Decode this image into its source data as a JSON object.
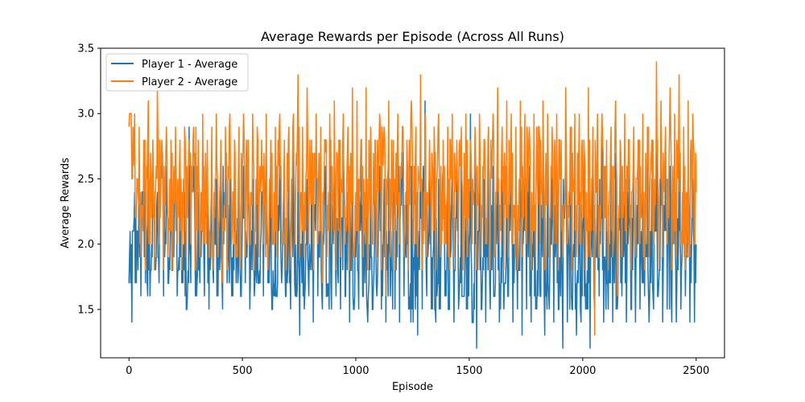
{
  "chart_data": {
    "type": "line",
    "title": "Average Rewards per Episode (Across All Runs)",
    "xlabel": "Episode",
    "ylabel": "Average Rewards",
    "xlim": [
      -125,
      2625
    ],
    "ylim": [
      1.13,
      3.5
    ],
    "xticks": [
      0,
      500,
      1000,
      1500,
      2000,
      2500
    ],
    "yticks": [
      1.5,
      2.0,
      2.5,
      3.0,
      3.5
    ],
    "xtick_labels": [
      "0",
      "500",
      "1000",
      "1500",
      "2000",
      "2500"
    ],
    "ytick_labels": [
      "1.5",
      "2.0",
      "2.5",
      "3.0",
      "3.5"
    ],
    "grid": false,
    "legend_position": "upper-left",
    "series": [
      {
        "name": "Player 1 - Average",
        "color": "#1f77b4",
        "x": [
          0,
          20,
          40,
          60,
          80,
          100,
          120,
          140,
          160,
          180,
          200,
          220,
          240,
          260,
          280,
          300,
          320,
          340,
          360,
          380,
          400,
          420,
          440,
          460,
          480,
          500,
          520,
          540,
          560,
          580,
          600,
          620,
          640,
          660,
          680,
          700,
          720,
          740,
          760,
          780,
          800,
          820,
          840,
          860,
          880,
          900,
          920,
          940,
          960,
          980,
          1000,
          1020,
          1040,
          1060,
          1080,
          1100,
          1120,
          1140,
          1160,
          1180,
          1200,
          1220,
          1240,
          1260,
          1280,
          1300,
          1320,
          1340,
          1360,
          1380,
          1400,
          1420,
          1440,
          1460,
          1480,
          1500,
          1520,
          1540,
          1560,
          1580,
          1600,
          1620,
          1640,
          1660,
          1680,
          1700,
          1720,
          1740,
          1760,
          1780,
          1800,
          1820,
          1840,
          1860,
          1880,
          1900,
          1920,
          1940,
          1960,
          1980,
          2000,
          2020,
          2040,
          2060,
          2080,
          2100,
          2120,
          2140,
          2160,
          2180,
          2200,
          2220,
          2240,
          2260,
          2280,
          2300,
          2320,
          2340,
          2360,
          2380,
          2400,
          2420,
          2440,
          2460,
          2480,
          2500
        ],
        "values": [
          1.7,
          2.1,
          1.8,
          2.4,
          1.7,
          2.0,
          1.9,
          2.6,
          2.1,
          1.8,
          2.3,
          1.9,
          2.0,
          1.8,
          2.5,
          1.7,
          2.1,
          2.2,
          1.9,
          2.0,
          1.8,
          2.4,
          1.9,
          2.0,
          1.7,
          2.2,
          1.9,
          2.1,
          1.8,
          2.0,
          2.3,
          1.9,
          1.7,
          2.1,
          2.0,
          1.8,
          2.2,
          1.6,
          1.9,
          2.0,
          1.8,
          2.3,
          1.9,
          2.1,
          1.7,
          2.0,
          1.8,
          2.2,
          2.0,
          1.8,
          1.9,
          2.1,
          1.7,
          2.0,
          1.8,
          2.2,
          1.9,
          2.0,
          1.8,
          2.1,
          2.3,
          1.9,
          1.7,
          2.0,
          1.8,
          2.2,
          2.0,
          1.9,
          1.7,
          2.1,
          1.8,
          2.0,
          2.2,
          1.9,
          1.8,
          2.0,
          1.7,
          2.1,
          1.9,
          2.3,
          1.8,
          2.0,
          1.9,
          1.7,
          2.1,
          2.0,
          1.8,
          2.2,
          1.9,
          2.0,
          1.8,
          2.1,
          1.7,
          2.0,
          1.9,
          1.8,
          2.2,
          1.9,
          2.0,
          1.7,
          2.1,
          1.8,
          2.0,
          1.9,
          2.2,
          1.8,
          2.0,
          1.7,
          2.1,
          1.9,
          2.0,
          1.8,
          2.3,
          1.9,
          2.0,
          1.7,
          2.1,
          1.8,
          2.2,
          1.9,
          2.0,
          1.8,
          2.1,
          1.9,
          2.0,
          2.0
        ],
        "lows": [
          1.4,
          1.7,
          1.6,
          1.7,
          1.6,
          1.8,
          1.7,
          1.6,
          1.7,
          1.8,
          1.6,
          1.7,
          1.5,
          1.7,
          1.6,
          1.7,
          1.6,
          1.5,
          1.7,
          1.6,
          1.5,
          1.7,
          1.6,
          1.7,
          1.6,
          1.7,
          1.5,
          1.6,
          1.7,
          1.6,
          1.7,
          1.5,
          1.6,
          1.7,
          1.6,
          1.5,
          1.6,
          1.3,
          1.5,
          1.6,
          1.4,
          1.6,
          1.5,
          1.6,
          1.5,
          1.6,
          1.5,
          1.6,
          1.4,
          1.5,
          1.5,
          1.6,
          1.4,
          1.5,
          1.6,
          1.5,
          1.4,
          1.6,
          1.5,
          1.4,
          1.6,
          1.5,
          1.4,
          1.3,
          1.5,
          1.6,
          1.5,
          1.4,
          1.5,
          1.6,
          1.5,
          1.4,
          1.5,
          1.6,
          1.5,
          1.4,
          1.2,
          1.5,
          1.4,
          1.5,
          1.6,
          1.4,
          1.5,
          1.6,
          1.4,
          1.5,
          1.3,
          1.5,
          1.4,
          1.5,
          1.6,
          1.3,
          1.5,
          1.4,
          1.5,
          1.2,
          1.4,
          1.5,
          1.3,
          1.4,
          1.5,
          1.2,
          1.5,
          1.6,
          1.4,
          1.5,
          1.4,
          1.5,
          1.6,
          1.4,
          1.5,
          1.4,
          1.5,
          1.6,
          1.4,
          1.5,
          1.6,
          1.4,
          1.5,
          1.4,
          1.4,
          1.5,
          1.6,
          1.4,
          1.4,
          1.8
        ],
        "highs": [
          2.1,
          2.4,
          2.7,
          2.6,
          2.7,
          2.8,
          2.4,
          2.7,
          2.6,
          2.5,
          2.7,
          2.6,
          2.4,
          2.9,
          2.6,
          2.4,
          2.8,
          2.5,
          2.6,
          2.5,
          2.7,
          2.6,
          2.5,
          2.8,
          2.5,
          2.6,
          2.8,
          2.5,
          2.6,
          2.4,
          2.7,
          2.6,
          2.5,
          2.7,
          2.6,
          2.5,
          2.7,
          2.6,
          2.8,
          2.5,
          2.6,
          2.7,
          2.5,
          2.6,
          2.8,
          2.5,
          2.6,
          2.7,
          2.4,
          2.6,
          2.5,
          2.7,
          2.6,
          2.5,
          2.8,
          2.6,
          2.5,
          2.7,
          2.6,
          2.8,
          2.7,
          2.5,
          2.6,
          2.6,
          2.8,
          3.1,
          2.6,
          2.7,
          2.5,
          2.6,
          2.7,
          2.6,
          2.5,
          2.7,
          2.6,
          3.0,
          2.7,
          2.6,
          2.5,
          2.7,
          2.6,
          2.8,
          2.5,
          2.6,
          2.7,
          2.6,
          2.5,
          2.7,
          2.6,
          2.8,
          2.7,
          2.5,
          2.6,
          2.7,
          2.6,
          2.5,
          2.8,
          2.6,
          2.7,
          2.5,
          2.6,
          2.5,
          2.7,
          2.6,
          2.8,
          2.5,
          2.6,
          2.7,
          2.6,
          2.5,
          2.7,
          2.6,
          2.8,
          2.6,
          2.7,
          2.5,
          2.8,
          2.6,
          2.7,
          2.6,
          2.6,
          2.8,
          2.7,
          2.6,
          2.5,
          2.4
        ]
      },
      {
        "name": "Player 2 - Average",
        "color": "#ff7f0e",
        "x": [
          0,
          20,
          40,
          60,
          80,
          100,
          120,
          140,
          160,
          180,
          200,
          220,
          240,
          260,
          280,
          300,
          320,
          340,
          360,
          380,
          400,
          420,
          440,
          460,
          480,
          500,
          520,
          540,
          560,
          580,
          600,
          620,
          640,
          660,
          680,
          700,
          720,
          740,
          760,
          780,
          800,
          820,
          840,
          860,
          880,
          900,
          920,
          940,
          960,
          980,
          1000,
          1020,
          1040,
          1060,
          1080,
          1100,
          1120,
          1140,
          1160,
          1180,
          1200,
          1220,
          1240,
          1260,
          1280,
          1300,
          1320,
          1340,
          1360,
          1380,
          1400,
          1420,
          1440,
          1460,
          1480,
          1500,
          1520,
          1540,
          1560,
          1580,
          1600,
          1620,
          1640,
          1660,
          1680,
          1700,
          1720,
          1740,
          1760,
          1780,
          1800,
          1820,
          1840,
          1860,
          1880,
          1900,
          1920,
          1940,
          1960,
          1980,
          2000,
          2020,
          2040,
          2060,
          2080,
          2100,
          2120,
          2140,
          2160,
          2180,
          2200,
          2220,
          2240,
          2260,
          2280,
          2300,
          2320,
          2340,
          2360,
          2380,
          2400,
          2420,
          2440,
          2460,
          2480,
          2500
        ],
        "values": [
          2.9,
          2.6,
          2.4,
          2.3,
          2.5,
          2.2,
          2.6,
          2.4,
          2.3,
          2.5,
          2.4,
          2.2,
          2.5,
          2.3,
          2.4,
          2.6,
          2.3,
          2.4,
          2.2,
          2.5,
          2.4,
          2.3,
          2.5,
          2.4,
          2.2,
          2.6,
          2.4,
          2.3,
          2.5,
          2.4,
          2.3,
          2.5,
          2.4,
          2.6,
          2.3,
          2.4,
          2.5,
          2.6,
          2.3,
          2.5,
          2.4,
          2.6,
          2.3,
          2.5,
          2.4,
          2.3,
          2.6,
          2.4,
          2.5,
          2.3,
          2.4,
          2.6,
          2.4,
          2.5,
          2.3,
          2.4,
          2.6,
          2.5,
          2.4,
          2.3,
          2.5,
          2.4,
          2.6,
          2.3,
          2.5,
          2.4,
          2.3,
          2.5,
          2.6,
          2.4,
          2.3,
          2.5,
          2.4,
          2.6,
          2.3,
          2.5,
          2.4,
          2.3,
          2.6,
          2.4,
          2.5,
          2.3,
          2.4,
          2.6,
          2.4,
          2.3,
          2.5,
          2.4,
          2.6,
          2.3,
          2.5,
          2.4,
          2.3,
          2.6,
          2.4,
          2.5,
          2.3,
          2.4,
          2.5,
          2.3,
          2.4,
          2.2,
          2.5,
          2.4,
          2.3,
          2.6,
          2.4,
          2.5,
          2.3,
          2.4,
          2.6,
          2.4,
          2.5,
          2.3,
          2.4,
          2.6,
          2.3,
          2.5,
          2.4,
          2.6,
          2.3,
          2.5,
          2.4,
          2.3,
          2.5,
          2.4
        ],
        "lows": [
          2.5,
          2.2,
          1.9,
          1.8,
          2.0,
          1.8,
          2.0,
          1.8,
          1.9,
          1.8,
          2.0,
          1.8,
          1.9,
          2.0,
          1.8,
          1.9,
          2.0,
          1.9,
          1.8,
          1.9,
          1.7,
          1.8,
          2.0,
          1.9,
          1.8,
          1.9,
          2.0,
          1.8,
          1.9,
          2.0,
          1.8,
          2.0,
          1.9,
          2.0,
          1.8,
          1.9,
          2.0,
          1.9,
          1.9,
          2.0,
          1.8,
          2.0,
          1.7,
          1.9,
          2.0,
          1.8,
          1.9,
          2.0,
          1.8,
          1.9,
          2.0,
          1.9,
          1.8,
          2.0,
          1.9,
          1.8,
          1.6,
          1.9,
          1.8,
          2.0,
          1.9,
          1.8,
          2.0,
          1.9,
          1.8,
          1.9,
          2.0,
          1.8,
          1.9,
          2.0,
          1.8,
          1.9,
          2.0,
          1.8,
          1.9,
          2.0,
          1.8,
          1.9,
          2.0,
          1.8,
          1.9,
          2.0,
          1.8,
          1.9,
          2.0,
          1.8,
          1.9,
          2.0,
          1.8,
          1.9,
          2.0,
          1.8,
          1.9,
          2.0,
          1.8,
          1.9,
          2.0,
          1.8,
          1.9,
          2.0,
          1.8,
          1.9,
          1.3,
          1.9,
          2.0,
          1.8,
          1.9,
          1.6,
          1.9,
          2.0,
          1.8,
          1.9,
          2.0,
          1.8,
          1.9,
          2.0,
          1.8,
          1.9,
          2.0,
          1.8,
          1.9,
          2.0,
          1.8,
          1.9,
          2.0,
          2.3
        ],
        "highs": [
          3.0,
          3.0,
          2.9,
          2.8,
          3.1,
          2.8,
          3.2,
          2.8,
          2.9,
          2.8,
          2.9,
          2.8,
          2.9,
          2.8,
          2.9,
          2.8,
          3.0,
          2.8,
          2.9,
          3.0,
          2.8,
          2.9,
          3.0,
          2.8,
          2.9,
          3.0,
          2.8,
          3.0,
          2.9,
          2.8,
          3.0,
          2.8,
          2.9,
          3.0,
          2.8,
          2.9,
          3.0,
          3.3,
          2.9,
          3.2,
          2.8,
          3.0,
          2.9,
          2.8,
          3.0,
          3.1,
          2.8,
          3.0,
          2.9,
          3.2,
          3.1,
          2.8,
          3.2,
          2.9,
          2.8,
          3.0,
          2.9,
          3.1,
          2.8,
          3.0,
          2.9,
          2.8,
          3.1,
          2.9,
          3.3,
          3.0,
          2.8,
          2.9,
          3.0,
          2.8,
          2.9,
          3.0,
          2.8,
          2.9,
          3.0,
          2.8,
          2.9,
          3.0,
          2.8,
          2.9,
          3.0,
          3.2,
          2.9,
          3.1,
          3.0,
          2.9,
          3.1,
          3.0,
          2.9,
          3.0,
          2.9,
          3.1,
          3.0,
          2.9,
          3.0,
          2.8,
          3.2,
          2.9,
          3.0,
          3.0,
          2.8,
          3.2,
          2.9,
          3.0,
          3.0,
          2.8,
          2.9,
          3.1,
          2.8,
          3.0,
          2.8,
          2.9,
          2.8,
          3.0,
          2.9,
          2.8,
          3.4,
          3.1,
          2.9,
          3.2,
          3.0,
          3.3,
          2.9,
          3.1,
          3.0,
          2.9
        ]
      }
    ]
  }
}
